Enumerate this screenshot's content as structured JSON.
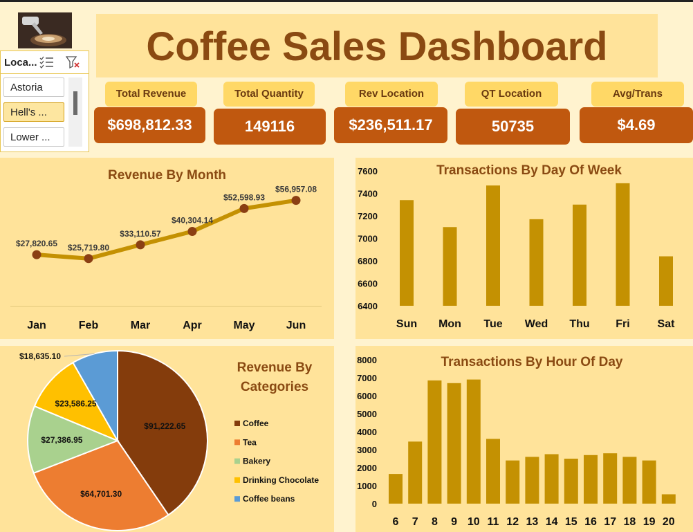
{
  "title": "Coffee Sales Dashboard",
  "slicer": {
    "title": "Loca...",
    "items": [
      "Astoria",
      "Hell's ...",
      "Lower ..."
    ],
    "selected_index": 1
  },
  "kpis": [
    {
      "label": "Total Revenue",
      "value": "$698,812.33"
    },
    {
      "label": "Total Quantity",
      "value": "149116"
    },
    {
      "label": "Rev Location",
      "value": "$236,511.17"
    },
    {
      "label": "QT Location",
      "value": "50735"
    },
    {
      "label": "Avg/Trans",
      "value": "$4.69"
    }
  ],
  "colors": {
    "accent_dark": "#8a4a12",
    "bar": "#c49102",
    "line": "#c49102",
    "marker": "#8b3f13",
    "kpi_value_bg": "#c0580f",
    "panel_bg": "#ffe39a"
  },
  "chart_data": [
    {
      "type": "line",
      "title": "Revenue By Month",
      "categories": [
        "Jan",
        "Feb",
        "Mar",
        "Apr",
        "May",
        "Jun"
      ],
      "values": [
        27820.65,
        25719.8,
        33110.57,
        40304.14,
        52598.93,
        56957.08
      ],
      "labels": [
        "$27,820.65",
        "$25,719.80",
        "$33,110.57",
        "$40,304.14",
        "$52,598.93",
        "$56,957.08"
      ],
      "ylim": [
        0,
        65000
      ]
    },
    {
      "type": "bar",
      "title": "Transactions By Day Of Week",
      "categories": [
        "Sun",
        "Mon",
        "Tue",
        "Wed",
        "Thu",
        "Fri",
        "Sat"
      ],
      "values": [
        7340,
        7100,
        7470,
        7170,
        7300,
        7490,
        6840
      ],
      "ylim": [
        6400,
        7600
      ],
      "yticks": [
        6400,
        6600,
        6800,
        7000,
        7200,
        7400,
        7600
      ]
    },
    {
      "type": "pie",
      "title": "Revenue By Categories",
      "categories": [
        "Coffee",
        "Tea",
        "Bakery",
        "Drinking Chocolate",
        "Coffee beans"
      ],
      "values": [
        91222.65,
        64701.3,
        27386.95,
        23586.25,
        18635.1
      ],
      "labels": [
        "$91,222.65",
        "$64,701.30",
        "$27,386.95",
        "$23,586.25",
        "$18,635.10"
      ],
      "colors": [
        "#843c0c",
        "#ed7d31",
        "#a9d18e",
        "#ffc000",
        "#5b9bd5"
      ]
    },
    {
      "type": "bar",
      "title": "Transactions By Hour Of Day",
      "categories": [
        "6",
        "7",
        "8",
        "9",
        "10",
        "11",
        "12",
        "13",
        "14",
        "15",
        "16",
        "17",
        "18",
        "19",
        "20"
      ],
      "values": [
        1650,
        3450,
        6850,
        6700,
        6900,
        3600,
        2400,
        2600,
        2750,
        2500,
        2700,
        2800,
        2600,
        2400,
        520
      ],
      "ylim": [
        0,
        8000
      ],
      "yticks": [
        0,
        1000,
        2000,
        3000,
        4000,
        5000,
        6000,
        7000,
        8000
      ]
    }
  ]
}
